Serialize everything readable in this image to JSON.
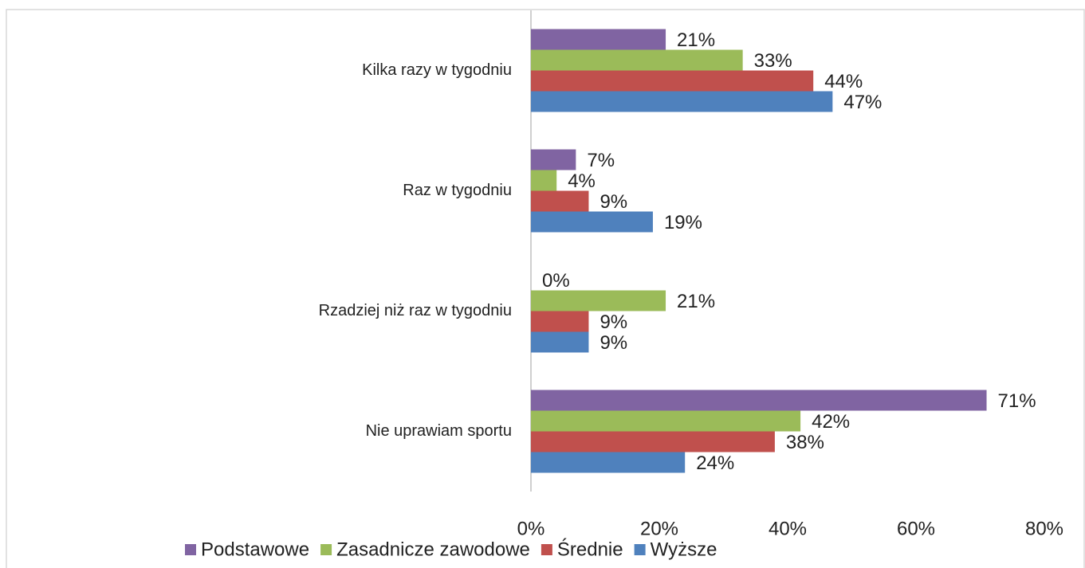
{
  "chart_data": {
    "type": "hbar",
    "categories": [
      "Kilka razy w tygodniu",
      "Raz w tygodniu",
      "Rzadziej niż raz w tygodniu",
      "Nie uprawiam sportu"
    ],
    "series": [
      {
        "name": "Podstawowe",
        "color": "#8064a2",
        "values": [
          21,
          7,
          0,
          71
        ],
        "value_labels": [
          "21%",
          "7%",
          "0%",
          "71%"
        ]
      },
      {
        "name": "Zasadnicze zawodowe",
        "color": "#9bbb59",
        "values": [
          33,
          4,
          21,
          42
        ],
        "value_labels": [
          "33%",
          "4%",
          "21%",
          "42%"
        ]
      },
      {
        "name": "Średnie",
        "color": "#c0504d",
        "values": [
          44,
          9,
          9,
          38
        ],
        "value_labels": [
          "44%",
          "9%",
          "9%",
          "38%"
        ]
      },
      {
        "name": "Wyższe",
        "color": "#4f81bd",
        "values": [
          47,
          19,
          9,
          24
        ],
        "value_labels": [
          "47%",
          "19%",
          "9%",
          "24%"
        ]
      }
    ],
    "xlim": [
      0,
      80
    ],
    "xticks": [
      {
        "value": 0,
        "label": "0%"
      },
      {
        "value": 20,
        "label": "20%"
      },
      {
        "value": 40,
        "label": "40%"
      },
      {
        "value": 60,
        "label": "60%"
      },
      {
        "value": 80,
        "label": "80%"
      }
    ],
    "legend": "bottom"
  }
}
